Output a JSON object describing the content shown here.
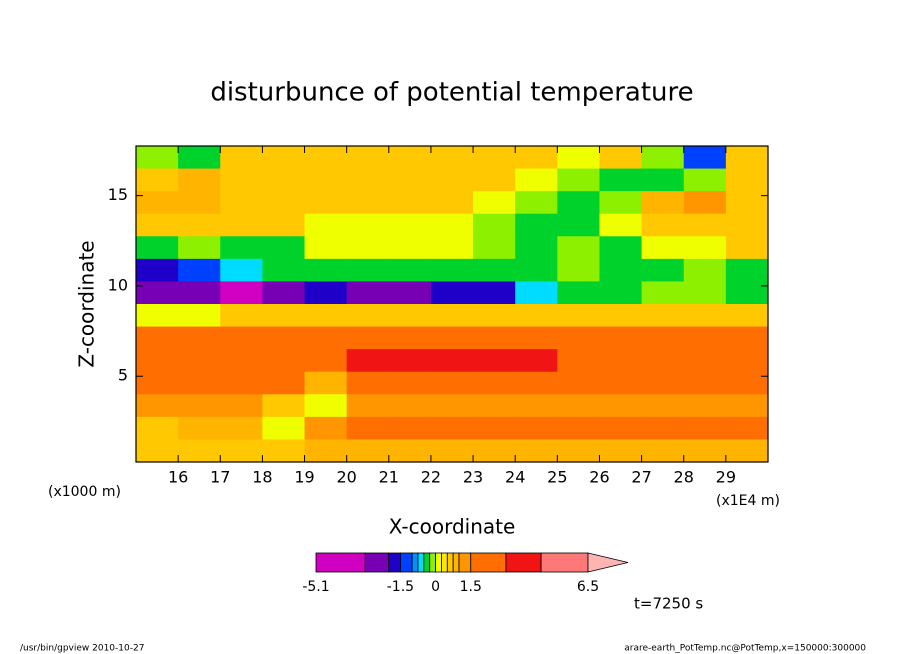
{
  "chart_data": {
    "type": "heatmap",
    "title": "disturbunce of potential temperature",
    "xlabel": "X-coordinate",
    "ylabel": "Z-coordinate",
    "x_unit_label": "(x1E4 m)",
    "y_unit_label": "(x1000 m)",
    "annotation": "t=7250 s",
    "x": [
      15.5,
      16.5,
      17.5,
      18.5,
      19.5,
      20.5,
      21.5,
      22.5,
      23.5,
      24.5,
      25.5,
      26.5,
      27.5,
      28.5,
      29.5
    ],
    "z": [
      17.125,
      15.875,
      14.625,
      13.375,
      12.125,
      10.875,
      9.625,
      8.375,
      7.125,
      5.875,
      4.625,
      3.375,
      2.125,
      0.875
    ],
    "values": [
      [
        -0.1,
        -0.4,
        0.6,
        0.6,
        0.6,
        0.6,
        0.6,
        0.6,
        0.6,
        0.6,
        0.1,
        0.6,
        -0.1,
        -1.2,
        0.6
      ],
      [
        0.6,
        0.9,
        0.6,
        0.6,
        0.6,
        0.6,
        0.6,
        0.6,
        0.6,
        0.1,
        -0.1,
        -0.4,
        -0.4,
        -0.1,
        0.6
      ],
      [
        0.9,
        0.9,
        0.6,
        0.6,
        0.6,
        0.6,
        0.6,
        0.6,
        0.1,
        -0.1,
        -0.4,
        -0.1,
        0.9,
        1.2,
        0.6
      ],
      [
        0.6,
        0.6,
        0.6,
        0.6,
        0.1,
        0.1,
        0.1,
        0.1,
        -0.1,
        -0.4,
        -0.4,
        0.1,
        0.6,
        0.6,
        0.6
      ],
      [
        -0.4,
        -0.1,
        -0.4,
        -0.4,
        0.1,
        0.1,
        0.1,
        0.1,
        -0.1,
        -0.4,
        -0.1,
        -0.4,
        0.1,
        0.1,
        0.6
      ],
      [
        -1.7,
        -1.2,
        -0.6,
        -0.4,
        -0.4,
        -0.4,
        -0.4,
        -0.4,
        -0.4,
        -0.4,
        -0.1,
        -0.4,
        -0.4,
        -0.1,
        -0.4
      ],
      [
        -2.5,
        -2.5,
        -4,
        -2.5,
        -1.7,
        -2.5,
        -2.5,
        -1.7,
        -1.7,
        -0.6,
        -0.4,
        -0.4,
        -0.1,
        -0.1,
        -0.4
      ],
      [
        0.1,
        0.1,
        0.6,
        0.6,
        0.6,
        0.6,
        0.6,
        0.6,
        0.6,
        0.6,
        0.6,
        0.6,
        0.6,
        0.6,
        0.6
      ],
      [
        2,
        2,
        2,
        2,
        2,
        2,
        2,
        2,
        2,
        2,
        2,
        2,
        2,
        2,
        2
      ],
      [
        2,
        2,
        2,
        2,
        2,
        3.5,
        3.5,
        3.5,
        3.5,
        3.5,
        2,
        2,
        2,
        2,
        2
      ],
      [
        2,
        2,
        2,
        2,
        0.9,
        2,
        2,
        2,
        2,
        2,
        2,
        2,
        2,
        2,
        2
      ],
      [
        1.2,
        1.2,
        1.2,
        0.6,
        0.1,
        1.2,
        1.2,
        1.2,
        1.2,
        1.2,
        1.2,
        1.2,
        1.2,
        1.2,
        1.2
      ],
      [
        0.6,
        0.9,
        0.9,
        0.1,
        1.2,
        2,
        2,
        2,
        2,
        2,
        2,
        2,
        2,
        2,
        2
      ],
      [
        0.6,
        0.6,
        0.6,
        0.6,
        0.9,
        0.9,
        0.9,
        0.9,
        0.9,
        0.9,
        0.9,
        0.9,
        0.9,
        0.9,
        0.9
      ]
    ],
    "xlim": [
      15,
      30
    ],
    "ylim": [
      0.25,
      17.75
    ],
    "xticks": [
      16,
      17,
      18,
      19,
      20,
      21,
      22,
      23,
      24,
      25,
      26,
      27,
      28,
      29
    ],
    "yticks": [
      5,
      10,
      15
    ],
    "colorbar": {
      "bounds": [
        -5.1,
        -3,
        -2,
        -1.5,
        -1,
        -0.75,
        -0.5,
        -0.25,
        0,
        0.25,
        0.5,
        0.75,
        1,
        1.5,
        3,
        4.5,
        6.5
      ],
      "colors": [
        "#d000c0",
        "#7800b4",
        "#1e00c8",
        "#0040ff",
        "#0090ff",
        "#00dcff",
        "#00d22c",
        "#8cf000",
        "#f0ff00",
        "#ffe600",
        "#ffc800",
        "#ffb400",
        "#ff9600",
        "#ff6e00",
        "#f01414",
        "#ff7878",
        "#ffb4b4"
      ],
      "ticks": [
        -5.1,
        -1.5,
        0,
        1.5,
        6.5
      ]
    }
  },
  "footer": {
    "left": "/usr/bin/gpview  2010-10-27",
    "right": "arare-earth_PotTemp.nc@PotTemp,x=150000:300000"
  }
}
